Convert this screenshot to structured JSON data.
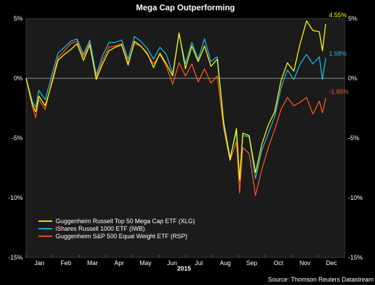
{
  "chart_data": {
    "type": "line",
    "title": "Mega Cap Outperforming",
    "xlabel": "2015",
    "ylabel": "",
    "source": "Source: Thomson Reuters Datastream",
    "ylim": [
      -15,
      5
    ],
    "yticks": [
      "5%",
      "0%",
      "-5%",
      "-10%",
      "-15%"
    ],
    "ytick_values": [
      5,
      0,
      -5,
      -10,
      -15
    ],
    "months": [
      "Jan",
      "Feb",
      "Mar",
      "Apr",
      "May",
      "Jun",
      "Jul",
      "Aug",
      "Sep",
      "Oct",
      "Nov",
      "Dec"
    ],
    "x_range_weeks": [
      0,
      50
    ],
    "legend_position": "bottom-left",
    "zero_line": true,
    "series": [
      {
        "name": "Guggenheim Russell Top 50 Mega Cap ETF (XLG)",
        "color": "#ffff00",
        "end_label": "4.55%",
        "x": [
          0,
          1,
          1.5,
          2,
          3,
          4,
          5,
          6,
          7,
          8,
          9,
          10,
          11,
          12,
          13,
          14,
          15,
          16,
          17,
          18,
          19,
          20,
          21,
          22,
          23,
          24,
          25,
          26,
          27,
          28,
          29,
          30,
          31,
          32,
          33,
          33.5,
          34,
          35,
          36,
          37,
          38,
          39,
          40,
          41,
          42,
          43,
          44,
          45,
          46,
          46.5,
          47
        ],
        "values": [
          0,
          -2.2,
          -2.8,
          -1.5,
          -2.3,
          -0.5,
          1.5,
          2.0,
          2.4,
          2.9,
          1.5,
          2.8,
          -0.1,
          1.2,
          2.3,
          2.6,
          2.8,
          1.1,
          3.1,
          2.7,
          2.1,
          0.9,
          2.1,
          1.2,
          0.2,
          3.8,
          0.8,
          2.7,
          1.4,
          2.7,
          1.0,
          1.6,
          -3.8,
          -6.8,
          -4.2,
          -8.5,
          -4.6,
          -4.8,
          -7.9,
          -5.5,
          -3.9,
          -2.8,
          -0.2,
          1.3,
          0.6,
          2.9,
          4.8,
          4.0,
          3.9,
          2.3,
          4.55
        ]
      },
      {
        "name": "iShares Russell 1000 ETF (IWB)",
        "color": "#22b8e6",
        "end_label": "1.68%",
        "x": [
          0,
          1,
          1.5,
          2,
          3,
          4,
          5,
          6,
          7,
          8,
          9,
          10,
          11,
          12,
          13,
          14,
          15,
          16,
          17,
          18,
          19,
          20,
          21,
          22,
          23,
          24,
          25,
          26,
          27,
          28,
          29,
          30,
          31,
          32,
          33,
          33.5,
          34,
          35,
          36,
          37,
          38,
          39,
          40,
          41,
          42,
          43,
          44,
          45,
          46,
          46.5,
          47
        ],
        "values": [
          0,
          -2.0,
          -2.4,
          -1.0,
          -1.8,
          0.2,
          2.1,
          2.6,
          3.1,
          3.3,
          2.0,
          3.2,
          0.3,
          1.9,
          3.0,
          3.0,
          3.2,
          1.6,
          3.5,
          3.1,
          2.5,
          1.6,
          2.6,
          2.0,
          0.4,
          3.7,
          1.2,
          3.0,
          1.6,
          3.3,
          1.4,
          1.8,
          -3.6,
          -6.6,
          -4.5,
          -8.6,
          -4.8,
          -4.9,
          -8.4,
          -6.0,
          -4.6,
          -3.2,
          -0.8,
          0.7,
          -0.1,
          1.2,
          2.0,
          1.2,
          1.8,
          -0.1,
          1.68
        ]
      },
      {
        "name": "Guggenheim S&P 500 Equal Weight ETF (RSP)",
        "color": "#ff5a1f",
        "end_label": "-1.65%",
        "x": [
          0,
          1,
          1.5,
          2,
          3,
          4,
          5,
          6,
          7,
          8,
          9,
          10,
          11,
          12,
          13,
          14,
          15,
          16,
          17,
          18,
          19,
          20,
          21,
          22,
          23,
          24,
          25,
          26,
          27,
          28,
          29,
          30,
          31,
          32,
          33,
          33.5,
          34,
          35,
          36,
          37,
          38,
          39,
          40,
          41,
          42,
          43,
          44,
          45,
          46,
          46.5,
          47
        ],
        "values": [
          0,
          -2.4,
          -3.3,
          -1.8,
          -2.6,
          -0.3,
          1.7,
          2.3,
          2.9,
          3.1,
          1.8,
          3.0,
          0.1,
          1.5,
          2.6,
          2.7,
          2.9,
          1.3,
          2.9,
          2.7,
          2.0,
          1.2,
          2.0,
          1.0,
          -0.5,
          1.3,
          0.2,
          1.2,
          -0.3,
          0.8,
          -0.4,
          0.2,
          -4.2,
          -6.9,
          -5.3,
          -9.6,
          -5.8,
          -6.3,
          -9.8,
          -7.6,
          -5.8,
          -4.3,
          -2.6,
          -1.6,
          -2.3,
          -2.0,
          -1.6,
          -3.0,
          -1.9,
          -2.9,
          -1.65
        ]
      }
    ]
  }
}
